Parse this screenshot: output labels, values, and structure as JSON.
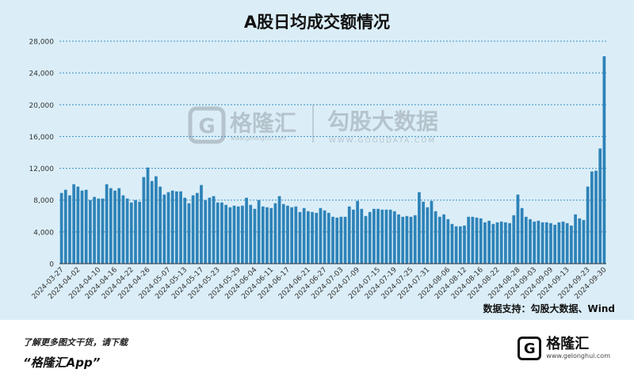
{
  "header": {
    "title": "A股日均成交额情况"
  },
  "source_label": "数据支持：勾股大数据、Wind",
  "watermark": {
    "brand": "格隆汇",
    "brand_url": "www.gelonghui.com",
    "partner": "勾股大数据",
    "partner_url": "WWW.GOGUDATA.COM"
  },
  "footer": {
    "cta": "了解更多图文干货，请下载",
    "app_name": "“格隆汇App”",
    "logo_name": "格隆汇",
    "logo_url": "www.gelonghui.com"
  },
  "colors": {
    "bar": "#2e83b8",
    "background": "#dbeef8",
    "grid": "#3b8fc4"
  },
  "chart_data": {
    "type": "bar",
    "title": "A股日均成交额情况",
    "xlabel": "",
    "ylabel": "",
    "ylim": [
      0,
      28000
    ],
    "yticks": [
      0,
      4000,
      8000,
      12000,
      16000,
      20000,
      24000,
      28000
    ],
    "ytick_labels": [
      "0",
      "4,000",
      "8,000",
      "12,000",
      "16,000",
      "20,000",
      "24,000",
      "28,000"
    ],
    "grid": true,
    "x_tick_labels": [
      "2024-03-27",
      "2024-04-02",
      "2024-04-10",
      "2024-04-16",
      "2024-04-22",
      "2024-04-26",
      "2024-05-07",
      "2024-05-13",
      "2024-05-17",
      "2024-05-23",
      "2024-05-29",
      "2024-06-04",
      "2024-06-11",
      "2024-06-17",
      "2024-06-21",
      "2024-06-27",
      "2024-07-03",
      "2024-07-09",
      "2024-07-15",
      "2024-07-19",
      "2024-07-25",
      "2024-07-31",
      "2024-08-06",
      "2024-08-12",
      "2024-08-16",
      "2024-08-22",
      "2024-08-28",
      "2024-09-03",
      "2024-09-09",
      "2024-09-13",
      "2024-09-23",
      "2024-09-30"
    ],
    "values": [
      8900,
      9300,
      8600,
      10000,
      9700,
      9200,
      9300,
      8000,
      8400,
      8200,
      8200,
      10000,
      9500,
      9200,
      9500,
      8600,
      8200,
      7700,
      8000,
      7800,
      10900,
      12100,
      10400,
      11000,
      9700,
      8700,
      9000,
      9200,
      9100,
      9100,
      8300,
      7600,
      8600,
      8900,
      9900,
      8000,
      8300,
      8500,
      7700,
      7700,
      7400,
      7100,
      7300,
      7200,
      7300,
      8300,
      7400,
      6900,
      8000,
      7200,
      7100,
      7000,
      7600,
      8500,
      7500,
      7300,
      7100,
      7200,
      6500,
      7000,
      6600,
      6500,
      6400,
      7000,
      6700,
      6400,
      5900,
      5800,
      5900,
      5900,
      7200,
      6800,
      7900,
      6900,
      6000,
      6500,
      6900,
      6900,
      6800,
      6800,
      6800,
      6600,
      6200,
      5900,
      6000,
      5900,
      6100,
      9000,
      7800,
      7100,
      7900,
      6600,
      5900,
      6200,
      5600,
      5000,
      4700,
      4700,
      4800,
      5900,
      5900,
      5800,
      5700,
      5200,
      5400,
      5000,
      5200,
      5300,
      5200,
      5100,
      6100,
      8700,
      7000,
      5900,
      5600,
      5300,
      5400,
      5200,
      5200,
      5100,
      4900,
      5200,
      5300,
      5100,
      4800,
      6200,
      5700,
      5500,
      9700,
      11600,
      11700,
      14500,
      26100
    ]
  }
}
